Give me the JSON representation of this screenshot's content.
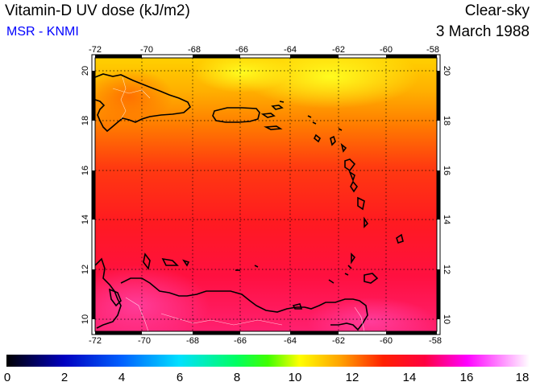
{
  "header": {
    "title": "Vitamin-D UV dose (kJ/m2)",
    "source": "MSR - KNMI",
    "sky_condition": "Clear-sky",
    "date": "3 March 1988"
  },
  "map": {
    "lon_range": [
      -72,
      -58
    ],
    "lat_range": [
      9.5,
      20.5
    ],
    "lon_ticks": [
      "-72",
      "-70",
      "-68",
      "-66",
      "-64",
      "-62",
      "-60",
      "-58"
    ],
    "lat_ticks": [
      "10",
      "12",
      "14",
      "16",
      "18",
      "20"
    ],
    "gridlines": true
  },
  "colorbar": {
    "min": 0,
    "max": 18,
    "labels": [
      "0",
      "2",
      "4",
      "6",
      "8",
      "10",
      "12",
      "14",
      "16",
      "18"
    ],
    "colors": [
      "#000000",
      "#0000ff",
      "#00bfff",
      "#00ffbf",
      "#00ff00",
      "#ffff00",
      "#ff8000",
      "#ff0000",
      "#ff00ff",
      "#ffffff"
    ]
  },
  "chart_data": {
    "type": "heatmap",
    "title": "Vitamin-D UV dose (kJ/m2)",
    "xlabel": "",
    "ylabel": "",
    "xlim": [
      -72,
      -58
    ],
    "ylim": [
      9.5,
      20.5
    ],
    "value_range": [
      0,
      18
    ],
    "description_values": {
      "north_20N": 11,
      "lat_18N": 12,
      "lat_16N": 13,
      "lat_14N": 13.5,
      "lat_12N": 14,
      "south_10N": 15
    }
  }
}
